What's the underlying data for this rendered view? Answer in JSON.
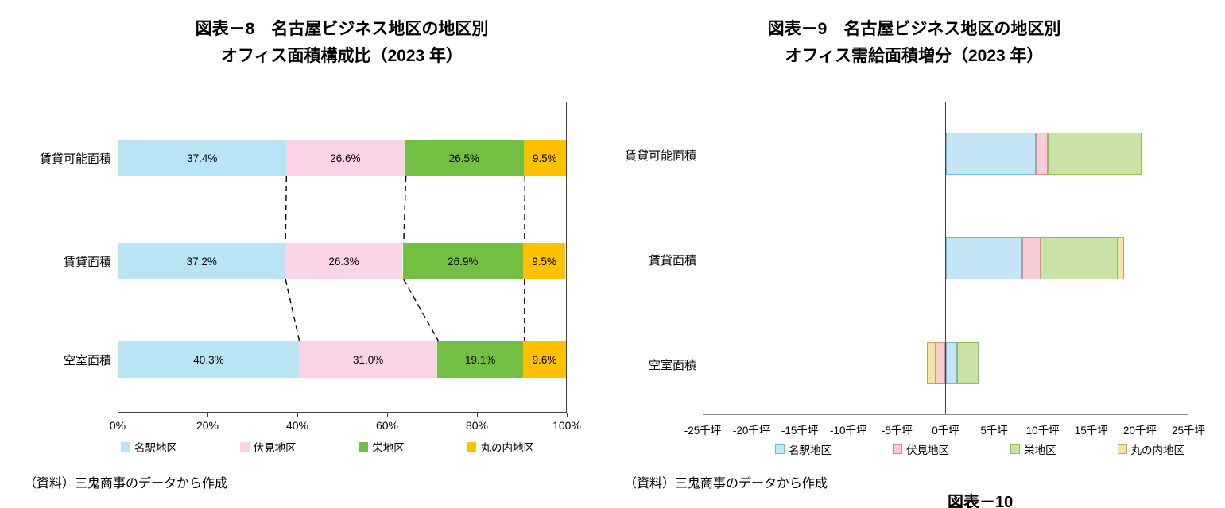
{
  "figure8": {
    "title_line1": "図表－8　名古屋ビジネス地区の地区別",
    "title_line2": "オフィス面積構成比（2023 年）",
    "source": "（資料）三鬼商事のデータから作成",
    "chart_data": {
      "type": "bar",
      "orientation": "horizontal",
      "stacked": "percent",
      "title": "名古屋ビジネス地区の地区別オフィス面積構成比（2023年）",
      "categories": [
        "賃貸可能面積",
        "賃貸面積",
        "空室面積"
      ],
      "series": [
        {
          "name": "名駅地区",
          "color": "#B8E4F5",
          "values": [
            37.4,
            37.2,
            40.3
          ]
        },
        {
          "name": "伏見地区",
          "color": "#F9D3E6",
          "values": [
            26.6,
            26.3,
            31.0
          ]
        },
        {
          "name": "栄地区",
          "color": "#72BF44",
          "values": [
            26.5,
            26.9,
            19.1
          ]
        },
        {
          "name": "丸の内地区",
          "color": "#FFC000",
          "values": [
            9.5,
            9.5,
            9.6
          ]
        }
      ],
      "data_labels": [
        [
          "37.4%",
          "26.6%",
          "26.5%",
          "9.5%"
        ],
        [
          "37.2%",
          "26.3%",
          "26.9%",
          "9.5%"
        ],
        [
          "40.3%",
          "31.0%",
          "19.1%",
          "9.6%"
        ]
      ],
      "x_ticks": [
        "0%",
        "20%",
        "40%",
        "60%",
        "80%",
        "100%"
      ],
      "xlim": [
        0,
        100
      ],
      "connector_lines": "dashed-black",
      "legend_position": "bottom",
      "grid": false
    }
  },
  "figure9": {
    "title_line1": "図表－9　名古屋ビジネス地区の地区別",
    "title_line2": "オフィス需給面積増分（2023 年）",
    "source": "（資料）三鬼商事のデータから作成",
    "chart_data": {
      "type": "bar",
      "orientation": "horizontal",
      "stacked": "diverging",
      "unit": "千坪",
      "title": "名古屋ビジネス地区の地区別オフィス需給面積増分（2023年）",
      "categories": [
        "賃貸可能面積",
        "賃貸面積",
        "空室面積"
      ],
      "series": [
        {
          "name": "名駅地区",
          "fill": "#C3E5F6",
          "border": "#6FB9DC",
          "values": [
            9.3,
            7.9,
            1.2
          ]
        },
        {
          "name": "伏見地区",
          "fill": "#F7CDD5",
          "border": "#E4848F",
          "values": [
            1.2,
            1.9,
            -1.0
          ]
        },
        {
          "name": "栄地区",
          "fill": "#C9E2A5",
          "border": "#8FBE59",
          "values": [
            9.7,
            7.9,
            2.2
          ]
        },
        {
          "name": "丸の内地区",
          "fill": "#F0E3B2",
          "border": "#C2A94E",
          "values": [
            0.0,
            0.7,
            -0.9
          ]
        }
      ],
      "x_ticks": [
        "-25千坪",
        "-20千坪",
        "-15千坪",
        "-10千坪",
        "-5千坪",
        "0千坪",
        "5千坪",
        "10千坪",
        "15千坪",
        "20千坪",
        "25千坪"
      ],
      "xlim": [
        -25,
        25
      ],
      "legend_position": "bottom",
      "grid": false
    }
  },
  "bottom_clipped_text": "図表－10"
}
